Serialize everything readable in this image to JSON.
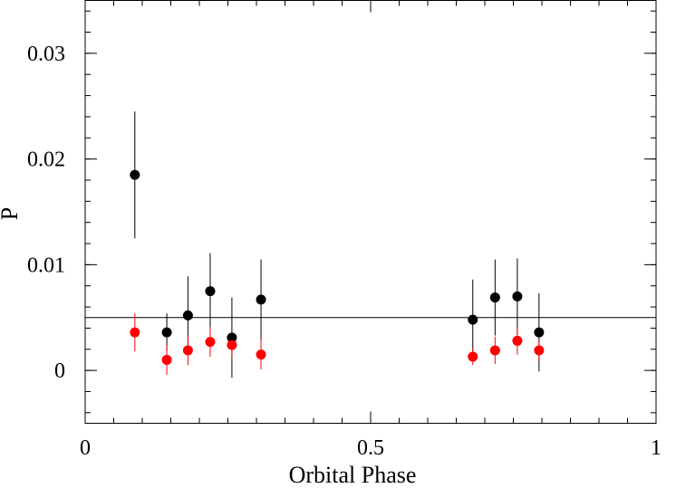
{
  "chart_data": {
    "type": "scatter",
    "title": "",
    "xlabel": "Orbital Phase",
    "ylabel": "P",
    "xlim": [
      0,
      1
    ],
    "ylim": [
      -0.005,
      0.035
    ],
    "x_ticks": [
      0,
      0.5,
      1
    ],
    "x_tick_labels": [
      "0",
      "0.5",
      "1"
    ],
    "y_ticks": [
      0,
      0.01,
      0.02,
      0.03
    ],
    "y_tick_labels": [
      "0",
      "0.01",
      "0.02",
      "0.03"
    ],
    "x_minor_step": 0.05,
    "y_minor_step": 0.002,
    "reference_line": {
      "y": 0.005,
      "color": "#000000"
    },
    "grid": false,
    "series": [
      {
        "name": "black",
        "color": "#000000",
        "x": [
          0.087,
          0.143,
          0.18,
          0.219,
          0.257,
          0.308,
          0.679,
          0.718,
          0.757,
          0.795
        ],
        "y": [
          0.0185,
          0.0036,
          0.0052,
          0.0075,
          0.0031,
          0.0067,
          0.0048,
          0.0069,
          0.007,
          0.0036
        ],
        "err": [
          0.006,
          0.0018,
          0.0037,
          0.0036,
          0.0038,
          0.0038,
          0.0038,
          0.0036,
          0.0036,
          0.0037
        ]
      },
      {
        "name": "red",
        "color": "#ff0000",
        "x": [
          0.087,
          0.143,
          0.18,
          0.219,
          0.257,
          0.308,
          0.679,
          0.718,
          0.757,
          0.795
        ],
        "y": [
          0.0036,
          0.001,
          0.0019,
          0.0027,
          0.0024,
          0.0015,
          0.0013,
          0.0019,
          0.0028,
          0.0019
        ],
        "err": [
          0.0018,
          0.0014,
          0.0014,
          0.0014,
          0.0012,
          0.0014,
          0.0008,
          0.0013,
          0.0013,
          0.001
        ]
      }
    ]
  }
}
